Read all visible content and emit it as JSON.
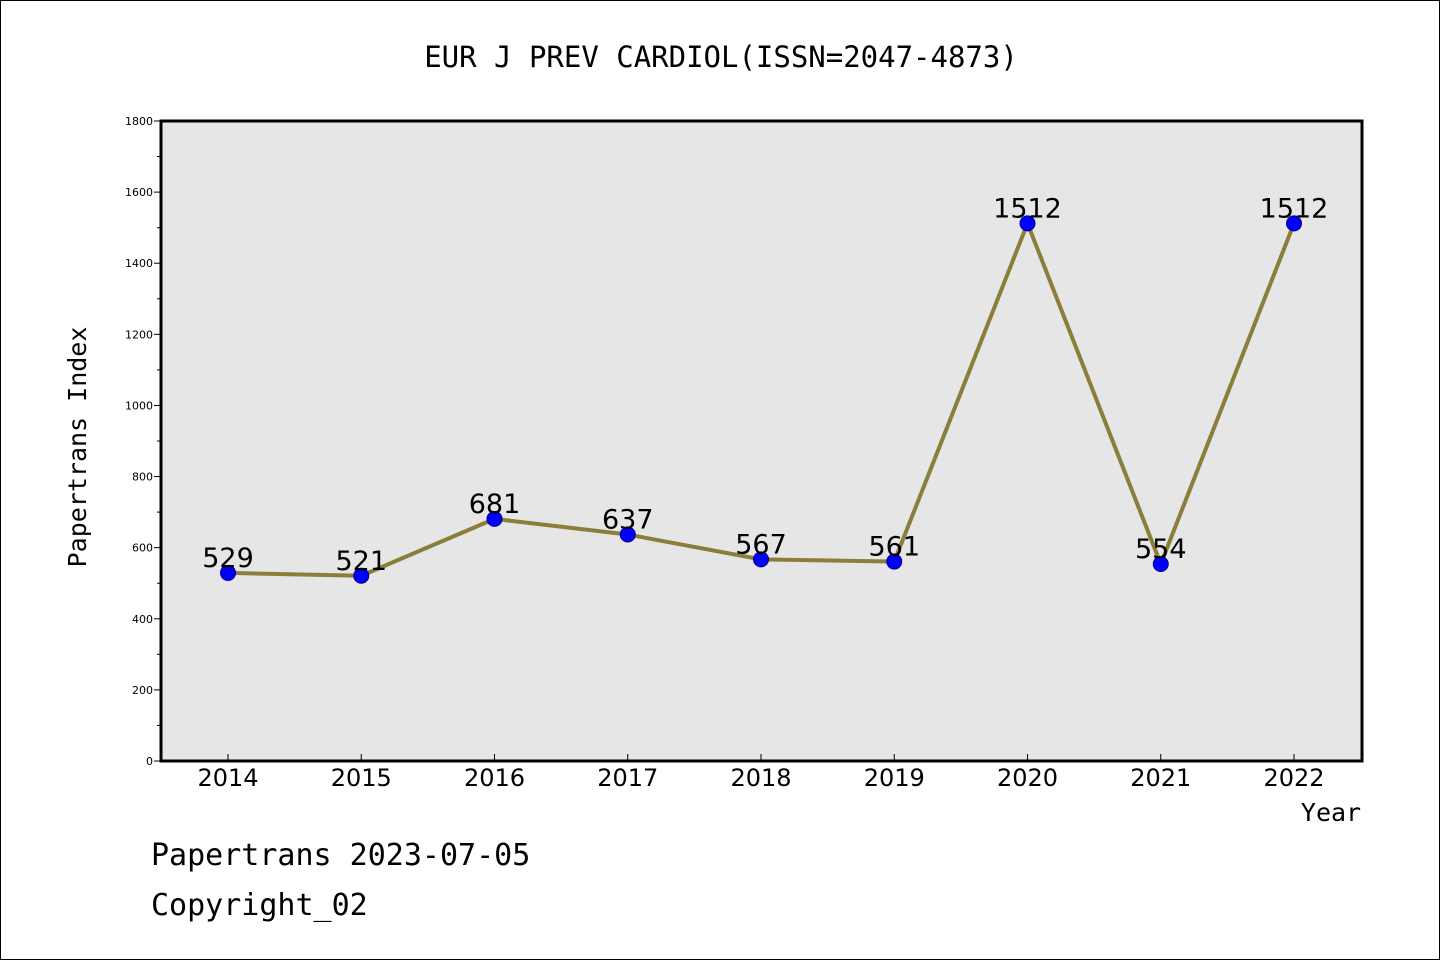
{
  "chart_data": {
    "type": "line",
    "title": "EUR J PREV CARDIOL(ISSN=2047-4873)",
    "xlabel": "Year",
    "ylabel": "Papertrans Index",
    "categories": [
      "2014",
      "2015",
      "2016",
      "2017",
      "2018",
      "2019",
      "2020",
      "2021",
      "2022"
    ],
    "values": [
      529,
      521,
      681,
      637,
      567,
      561,
      1512,
      554,
      1512
    ],
    "data_labels": [
      "529",
      "521",
      "681",
      "637",
      "567",
      "561",
      "1512",
      "554",
      "1512"
    ],
    "ylim": [
      0,
      1800
    ],
    "yticks": [
      0,
      200,
      400,
      600,
      800,
      1000,
      1200,
      1400,
      1600,
      1800
    ],
    "ytick_labels": [
      "0",
      "200",
      "400",
      "600",
      "800",
      "1000",
      "1200",
      "1400",
      "1600",
      "1800"
    ],
    "grid": false,
    "plot_background": "#e6e6e6",
    "line_color": "#8b7d3a",
    "marker_color": "#0000ff"
  },
  "footer": {
    "line1": "Papertrans 2023-07-05",
    "line2": "Copyright_02"
  }
}
